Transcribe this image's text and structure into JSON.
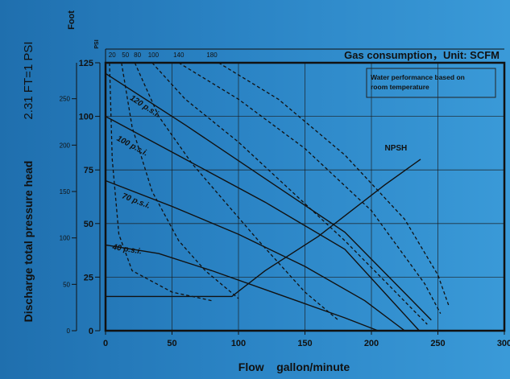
{
  "chart_data": {
    "type": "line",
    "title": "Gas consumption，Unit:  SCFM",
    "annotation": "Water performance based on room temperature",
    "xlabel": "Flow    gallon/minute",
    "ylabel": "Discharge total pressure head",
    "ylabel_note": "2.31 FT=1 PSI",
    "ylabel_unit_left": "Foot",
    "ylabel_unit_right": "PSI",
    "x_ticks": [
      "0",
      "50",
      "100",
      "150",
      "200",
      "250",
      "300"
    ],
    "psi_ticks": [
      "0",
      "25",
      "50",
      "75",
      "100",
      "125"
    ],
    "foot_ticks": [
      "0",
      "50",
      "100",
      "150",
      "200",
      "250"
    ],
    "xlim": [
      0,
      300
    ],
    "ylim_psi": [
      0,
      125
    ],
    "grid": true,
    "top_scale_ticks": [
      {
        "label": "20",
        "x": 5
      },
      {
        "label": "50",
        "x": 15
      },
      {
        "label": "80",
        "x": 24
      },
      {
        "label": "100",
        "x": 36
      },
      {
        "label": "140",
        "x": 55
      },
      {
        "label": "180",
        "x": 80
      }
    ],
    "pressure_curves": [
      {
        "name": "120 p.s.i.",
        "label_at": [
          18,
          108
        ],
        "points": [
          [
            0,
            120
          ],
          [
            60,
            96
          ],
          [
            120,
            71
          ],
          [
            180,
            46
          ],
          [
            245,
            5
          ]
        ]
      },
      {
        "name": "100 p.s.i.",
        "label_at": [
          8,
          89
        ],
        "points": [
          [
            0,
            100
          ],
          [
            60,
            80
          ],
          [
            120,
            60
          ],
          [
            180,
            38
          ],
          [
            236,
            0
          ]
        ]
      },
      {
        "name": "70 p.s.i.",
        "label_at": [
          12,
          62
        ],
        "points": [
          [
            0,
            70
          ],
          [
            50,
            58
          ],
          [
            100,
            45
          ],
          [
            150,
            30
          ],
          [
            195,
            14
          ],
          [
            225,
            0
          ]
        ]
      },
      {
        "name": "40 p.s.i.",
        "label_at": [
          5,
          38
        ],
        "points": [
          [
            0,
            40
          ],
          [
            40,
            36
          ],
          [
            80,
            28
          ],
          [
            130,
            17
          ],
          [
            180,
            6
          ],
          [
            205,
            0
          ]
        ]
      }
    ],
    "npsh_curve": {
      "name": "NPSH",
      "label_at": [
        210,
        84
      ],
      "points": [
        [
          0,
          16
        ],
        [
          95,
          16
        ],
        [
          120,
          28
        ],
        [
          160,
          44
        ],
        [
          210,
          68
        ],
        [
          237,
          80
        ]
      ]
    },
    "air_curves": [
      {
        "points": [
          [
            3,
            125
          ],
          [
            5,
            80
          ],
          [
            10,
            45
          ],
          [
            20,
            28
          ],
          [
            50,
            18
          ],
          [
            80,
            14
          ]
        ]
      },
      {
        "points": [
          [
            12,
            125
          ],
          [
            20,
            95
          ],
          [
            35,
            65
          ],
          [
            55,
            42
          ],
          [
            75,
            28
          ],
          [
            100,
            15
          ]
        ]
      },
      {
        "points": [
          [
            22,
            125
          ],
          [
            40,
            100
          ],
          [
            65,
            78
          ],
          [
            90,
            60
          ],
          [
            115,
            42
          ],
          [
            150,
            18
          ],
          [
            175,
            5
          ]
        ]
      },
      {
        "points": [
          [
            35,
            125
          ],
          [
            60,
            108
          ],
          [
            100,
            88
          ],
          [
            140,
            65
          ],
          [
            180,
            42
          ],
          [
            215,
            20
          ],
          [
            242,
            3
          ]
        ]
      },
      {
        "points": [
          [
            55,
            125
          ],
          [
            100,
            108
          ],
          [
            150,
            85
          ],
          [
            200,
            56
          ],
          [
            240,
            22
          ],
          [
            252,
            8
          ]
        ]
      },
      {
        "points": [
          [
            85,
            125
          ],
          [
            130,
            108
          ],
          [
            180,
            82
          ],
          [
            225,
            52
          ],
          [
            250,
            26
          ],
          [
            258,
            12
          ]
        ]
      }
    ]
  }
}
